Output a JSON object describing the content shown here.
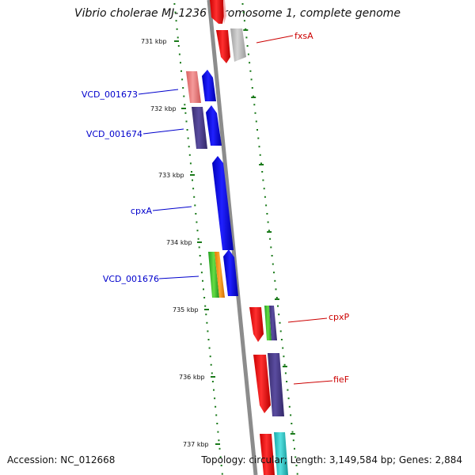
{
  "title": "Vibrio cholerae MJ-1236 chromosome 1, complete genome",
  "footer": {
    "accession": "Accession: NC_012668",
    "stats": "Topology: circular; Length: 3,149,584 bp; Genes: 2,884"
  },
  "ticks": [
    {
      "label": "731 kbp",
      "kbp": 731
    },
    {
      "label": "732 kbp",
      "kbp": 732
    },
    {
      "label": "733 kbp",
      "kbp": 733
    },
    {
      "label": "734 kbp",
      "kbp": 734
    },
    {
      "label": "735 kbp",
      "kbp": 735
    },
    {
      "label": "736 kbp",
      "kbp": 736
    },
    {
      "label": "737 kbp",
      "kbp": 737
    }
  ],
  "gene_labels": [
    {
      "text": "fxsA",
      "color": "#cc0000"
    },
    {
      "text": "VCD_001673",
      "color": "#0000cc"
    },
    {
      "text": "VCD_001674",
      "color": "#0000cc"
    },
    {
      "text": "cpxA",
      "color": "#0000cc"
    },
    {
      "text": "VCD_001676",
      "color": "#0000cc"
    },
    {
      "text": "cpxP",
      "color": "#cc0000"
    },
    {
      "text": "fieF",
      "color": "#cc0000"
    }
  ],
  "colors": {
    "backbone": "#8c8c8c",
    "tick_green": "#1a7a1a",
    "forward_gene": "#ff0000",
    "reverse_gene": "#0000ff",
    "cds_pink": "#f08080",
    "cds_purple": "#4b3c8c",
    "cds_gray": "#bfbfbf",
    "cds_green": "#33bb33",
    "cds_orange": "#ff8c00",
    "cds_cyan": "#22cccc"
  }
}
